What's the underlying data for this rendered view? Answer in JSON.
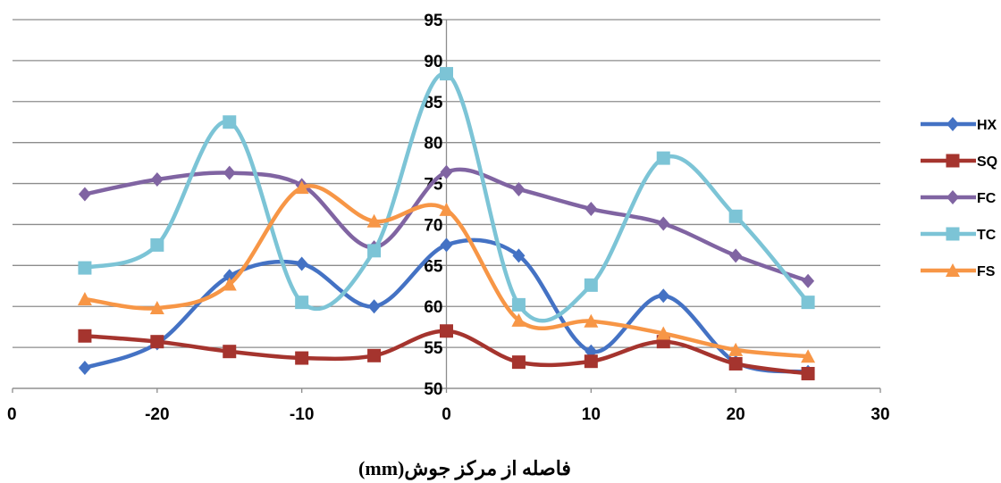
{
  "chart_data": {
    "type": "line",
    "xlabel": "فاصله از مرکز جوش(mm)",
    "ylabel": "",
    "title": "",
    "xlim": [
      -30,
      30
    ],
    "ylim": [
      50,
      95
    ],
    "x_ticks": [
      "0",
      "-20",
      "-10",
      "0",
      "10",
      "20",
      "30"
    ],
    "y_ticks": [
      "50",
      "55",
      "60",
      "65",
      "70",
      "75",
      "80",
      "85",
      "90",
      "95"
    ],
    "grid": "horizontal",
    "legend_position": "right",
    "x": [
      -25,
      -20,
      -15,
      -10,
      -5,
      0,
      5,
      10,
      15,
      20,
      25
    ],
    "series": [
      {
        "name": "HX",
        "color": "#4472c4",
        "marker": "diamond",
        "values": [
          52.5,
          55.5,
          63.7,
          65.2,
          60.0,
          67.5,
          66.2,
          54.5,
          61.3,
          53.2,
          52.0
        ]
      },
      {
        "name": "SQ",
        "color": "#a5342e",
        "marker": "square",
        "values": [
          56.4,
          55.7,
          54.5,
          53.7,
          54.0,
          57.0,
          53.2,
          53.3,
          55.7,
          53.0,
          51.8
        ]
      },
      {
        "name": "FC",
        "color": "#8064a2",
        "marker": "diamond",
        "values": [
          73.7,
          75.5,
          76.3,
          74.8,
          67.2,
          76.4,
          74.3,
          71.9,
          70.1,
          66.2,
          63.1
        ]
      },
      {
        "name": "TC",
        "color": "#7cc4d6",
        "marker": "square",
        "values": [
          64.7,
          67.5,
          82.5,
          60.5,
          66.8,
          88.4,
          60.2,
          62.6,
          78.1,
          71.0,
          60.5
        ]
      },
      {
        "name": "FS",
        "color": "#f79646",
        "marker": "triangle",
        "values": [
          60.9,
          59.8,
          62.7,
          74.5,
          70.4,
          71.8,
          58.3,
          58.2,
          56.7,
          54.7,
          53.9
        ]
      }
    ]
  }
}
